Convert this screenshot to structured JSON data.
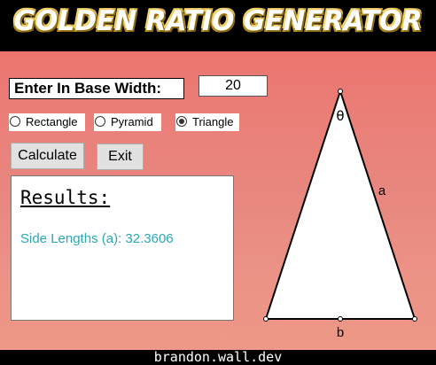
{
  "app": {
    "title": "GOLDEN RATIO GENERATOR",
    "footer": "brandon.wall.dev"
  },
  "form": {
    "base_width_label": "Enter In Base Width:",
    "base_width_value": "20"
  },
  "shape_options": [
    {
      "label": "Rectangle",
      "checked": false
    },
    {
      "label": "Pyramid",
      "checked": false
    },
    {
      "label": "Triangle",
      "checked": true
    }
  ],
  "buttons": {
    "calculate": "Calculate",
    "exit": "Exit"
  },
  "results": {
    "heading": "Results:",
    "line": "Side Lengths (a): 32.3606"
  },
  "diagram": {
    "apex_label": "θ",
    "side_label": "a",
    "base_label": "b"
  }
}
